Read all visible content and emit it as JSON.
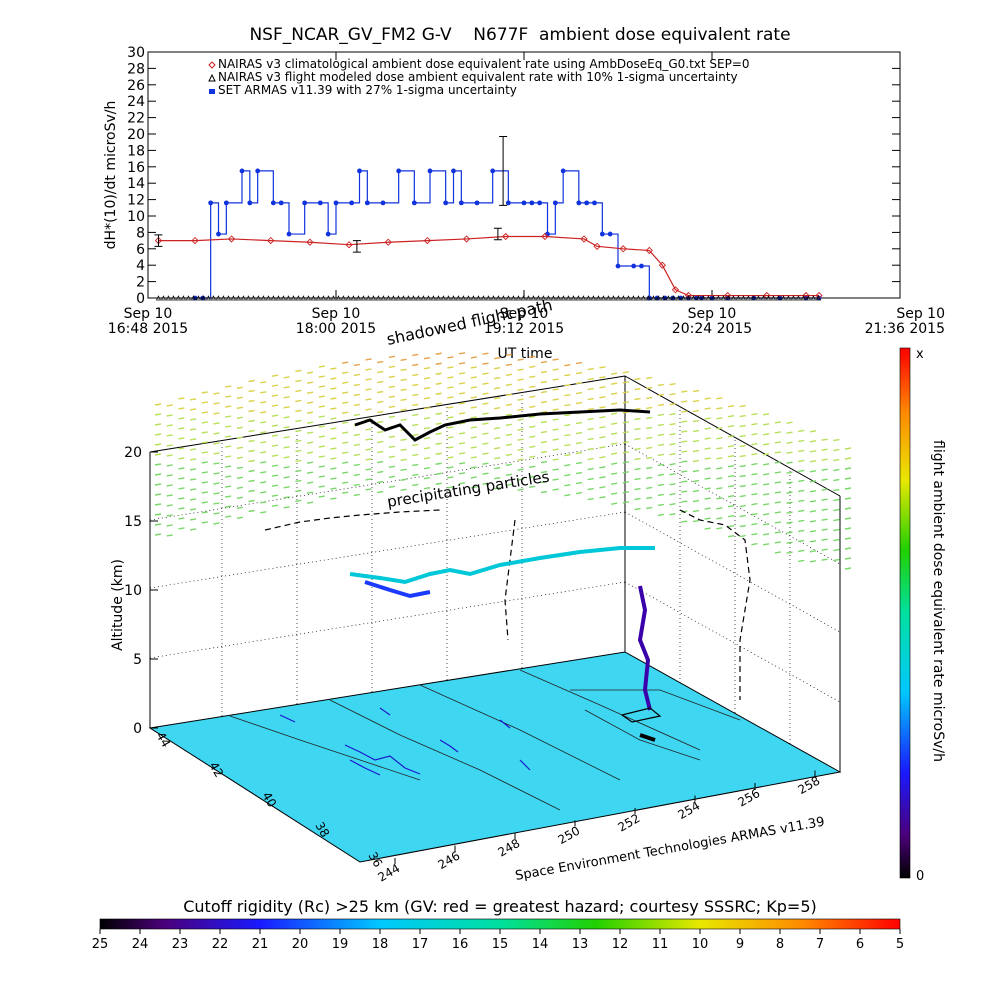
{
  "chart_data": [
    {
      "type": "line",
      "title": "NSF_NCAR_GV_FM2 G-V    N677F  ambient dose equivalent rate",
      "ylabel": "dH*(10)/dt microSv/h",
      "xlabel": "UT time",
      "ylim": [
        0,
        30
      ],
      "yticks": [
        "0",
        "2",
        "4",
        "6",
        "8",
        "10",
        "12",
        "14",
        "16",
        "18",
        "20",
        "22",
        "24",
        "26",
        "28",
        "30"
      ],
      "xticks": [
        {
          "line1": "Sep 10",
          "line2": "16:48 2015"
        },
        {
          "line1": "Sep 10",
          "line2": "18:00 2015"
        },
        {
          "line1": "Sep 10",
          "line2": "19:12 2015"
        },
        {
          "line1": "Sep 10",
          "line2": "20:24 2015"
        },
        {
          "line1": "Sep 10",
          "line2": "21:36 2015"
        }
      ],
      "xlim": [
        "16:48",
        "21:36"
      ],
      "legend": [
        {
          "marker": "diamond",
          "color": "#cc2222",
          "label": "NAIRAS v3 climatological ambient dose equivalent rate using AmbDoseEq_G0.txt SEP=0"
        },
        {
          "marker": "triangle",
          "color": "#000000",
          "label": "NAIRAS v3 flight modeled dose ambient equivalent rate with 10% 1-sigma uncertainty"
        },
        {
          "marker": "square",
          "color": "#1133dd",
          "label": "SET ARMAS v11.39 with 27% 1-sigma uncertainty"
        }
      ],
      "series": [
        {
          "name": "SET ARMAS v11.39 with 27% 1-sigma uncertainty",
          "color": "#1133dd",
          "x": [
            "17:06",
            "17:09",
            "17:12",
            "17:15",
            "17:18",
            "17:24",
            "17:27",
            "17:30",
            "17:36",
            "17:39",
            "17:42",
            "17:48",
            "17:54",
            "17:57",
            "18:00",
            "18:06",
            "18:09",
            "18:12",
            "18:18",
            "18:24",
            "18:30",
            "18:36",
            "18:42",
            "18:45",
            "18:48",
            "18:54",
            "19:00",
            "19:06",
            "19:12",
            "19:15",
            "19:18",
            "19:21",
            "19:24",
            "19:27",
            "19:33",
            "19:36",
            "19:39",
            "19:42",
            "19:45",
            "19:48",
            "19:54",
            "19:57",
            "20:00",
            "20:03",
            "20:06",
            "20:09",
            "20:12",
            "20:15",
            "20:18",
            "20:20",
            "20:24",
            "20:30",
            "20:40",
            "20:50",
            "21:00",
            "21:05"
          ],
          "y": [
            0,
            0,
            11.6,
            7.8,
            11.6,
            15.5,
            11.6,
            15.5,
            11.6,
            11.6,
            7.8,
            11.6,
            11.6,
            7.8,
            11.6,
            11.6,
            15.5,
            11.6,
            11.6,
            15.5,
            11.6,
            15.5,
            11.6,
            15.5,
            11.6,
            11.6,
            15.5,
            11.6,
            11.6,
            11.6,
            11.6,
            7.8,
            11.6,
            15.5,
            11.6,
            11.6,
            11.6,
            7.8,
            7.8,
            3.9,
            3.9,
            3.9,
            0,
            0,
            0,
            0,
            0,
            0,
            0,
            0,
            0,
            0,
            0,
            0,
            0,
            0
          ]
        },
        {
          "name": "NAIRAS v3 climatological ambient dose equivalent rate using AmbDoseEq_G0.txt SEP=0",
          "color": "#cc2222",
          "x": [
            "16:52",
            "17:06",
            "17:20",
            "17:35",
            "17:50",
            "18:05",
            "18:20",
            "18:35",
            "18:50",
            "19:05",
            "19:20",
            "19:35",
            "19:40",
            "19:50",
            "20:00",
            "20:05",
            "20:10",
            "20:15",
            "20:30",
            "20:45",
            "21:00",
            "21:05"
          ],
          "y": [
            7.0,
            7.0,
            7.2,
            7.0,
            6.8,
            6.5,
            6.8,
            7.0,
            7.2,
            7.5,
            7.5,
            7.2,
            6.3,
            6.0,
            5.8,
            4.0,
            1.0,
            0.3,
            0.3,
            0.3,
            0.3,
            0.3
          ]
        },
        {
          "name": "NAIRAS v3 flight modeled dose ambient equivalent rate with 10% 1-sigma uncertainty",
          "color": "#000000",
          "x": [
            "16:52",
            "21:05"
          ],
          "y": [
            0,
            0
          ]
        }
      ]
    },
    {
      "type": "scatter",
      "zlabel": "Altitude (km)",
      "zticks": [
        "0",
        "5",
        "10",
        "15",
        "20"
      ],
      "xticks": [
        "244",
        "246",
        "248",
        "250",
        "252",
        "254",
        "256",
        "258"
      ],
      "yticks": [
        "36",
        "38",
        "40",
        "42",
        "44"
      ],
      "credit": "Space Environment Technologies ARMAS v11.39",
      "annotations": [
        "shadowed flight path",
        "precipitating particles"
      ],
      "colorbar": {
        "label": "flight ambient dose equivalent rate microSv/h",
        "max_label": "x",
        "min_label": "0"
      }
    },
    {
      "type": "heatmap",
      "label": "Cutoff rigidity (Rc) >25 km (GV: red = greatest hazard; courtesy SSSRC; Kp=5)",
      "ticks": [
        "25",
        "24",
        "23",
        "22",
        "21",
        "20",
        "19",
        "18",
        "17",
        "16",
        "15",
        "14",
        "13",
        "12",
        "11",
        "10",
        "9",
        "8",
        "7",
        "6",
        "5"
      ]
    }
  ]
}
